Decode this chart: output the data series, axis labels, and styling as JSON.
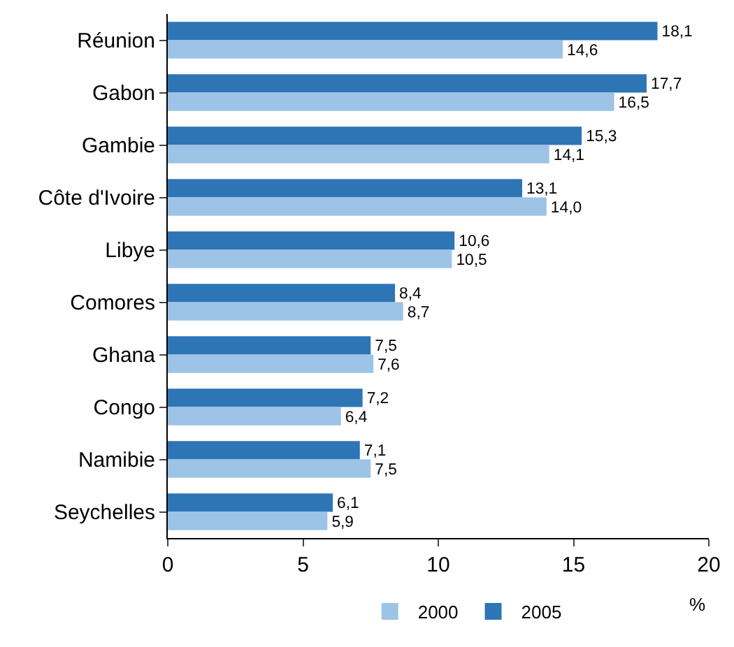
{
  "chart_data": {
    "type": "bar",
    "orientation": "horizontal",
    "categories": [
      "Réunion",
      "Gabon",
      "Gambie",
      "Côte d'Ivoire",
      "Libye",
      "Comores",
      "Ghana",
      "Congo",
      "Namibie",
      "Seychelles"
    ],
    "series": [
      {
        "name": "2005",
        "color": "#2e75b6",
        "values": [
          18.1,
          17.7,
          15.3,
          13.1,
          10.6,
          8.4,
          7.5,
          7.2,
          7.1,
          6.1
        ],
        "value_labels": [
          "18,1",
          "17,7",
          "15,3",
          "13,1",
          "10,6",
          "8,4",
          "7,5",
          "7,2",
          "7,1",
          "6,1"
        ]
      },
      {
        "name": "2000",
        "color": "#9dc3e6",
        "values": [
          14.6,
          16.5,
          14.1,
          14.0,
          10.5,
          8.7,
          7.6,
          6.4,
          7.5,
          5.9
        ],
        "value_labels": [
          "14,6",
          "16,5",
          "14,1",
          "14,0",
          "10,5",
          "8,7",
          "7,6",
          "6,4",
          "7,5",
          "5,9"
        ]
      }
    ],
    "xlim": [
      0,
      20
    ],
    "xticks": [
      0,
      5,
      10,
      15,
      20
    ],
    "xlabel": "%",
    "legend": "bottom"
  }
}
